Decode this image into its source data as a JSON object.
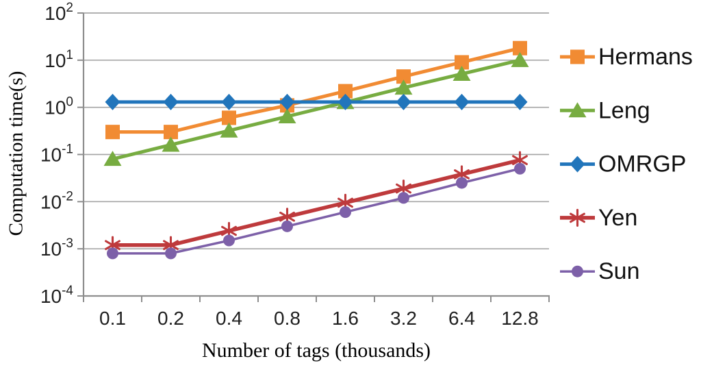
{
  "chart_data": {
    "type": "line",
    "title": "",
    "xlabel": "Number of tags (thousands)",
    "ylabel": "Computation time(s)",
    "x_scale": "categorical",
    "y_scale": "log10",
    "ylim": [
      0.0001,
      100
    ],
    "y_tick_exponents": [
      2,
      1,
      0,
      -1,
      -2,
      -3,
      -4
    ],
    "grid": "horizontal-major",
    "legend_position": "right",
    "categories": [
      "0.1",
      "0.2",
      "0.4",
      "0.8",
      "1.6",
      "3.2",
      "6.4",
      "12.8"
    ],
    "series": [
      {
        "name": "Hermans",
        "marker": "square",
        "color": "#F18B33",
        "line_width": 5,
        "values": [
          0.3,
          0.3,
          0.6,
          1.1,
          2.2,
          4.5,
          9,
          18
        ]
      },
      {
        "name": "Leng",
        "marker": "triangle",
        "color": "#77AC41",
        "line_width": 5,
        "values": [
          0.08,
          0.16,
          0.32,
          0.64,
          1.28,
          2.6,
          5.1,
          10
        ]
      },
      {
        "name": "OMRGP",
        "marker": "diamond",
        "color": "#2175BB",
        "line_width": 5,
        "values": [
          1.3,
          1.3,
          1.3,
          1.3,
          1.3,
          1.3,
          1.3,
          1.3
        ]
      },
      {
        "name": "Yen",
        "marker": "asterisk",
        "color": "#BE3A3C",
        "line_width": 5.5,
        "values": [
          0.0012,
          0.0012,
          0.0024,
          0.0048,
          0.0095,
          0.019,
          0.038,
          0.076
        ]
      },
      {
        "name": "Sun",
        "marker": "circle",
        "color": "#7D60A8",
        "line_width": 3.5,
        "values": [
          0.0008,
          0.0008,
          0.0015,
          0.003,
          0.006,
          0.012,
          0.025,
          0.05
        ]
      }
    ],
    "colors": {
      "gridline": "#A6A6A6",
      "axis": "#8E8E8E",
      "tick_label": "#1f1f1f",
      "legend_text": "#111111",
      "background": "#ffffff"
    }
  }
}
